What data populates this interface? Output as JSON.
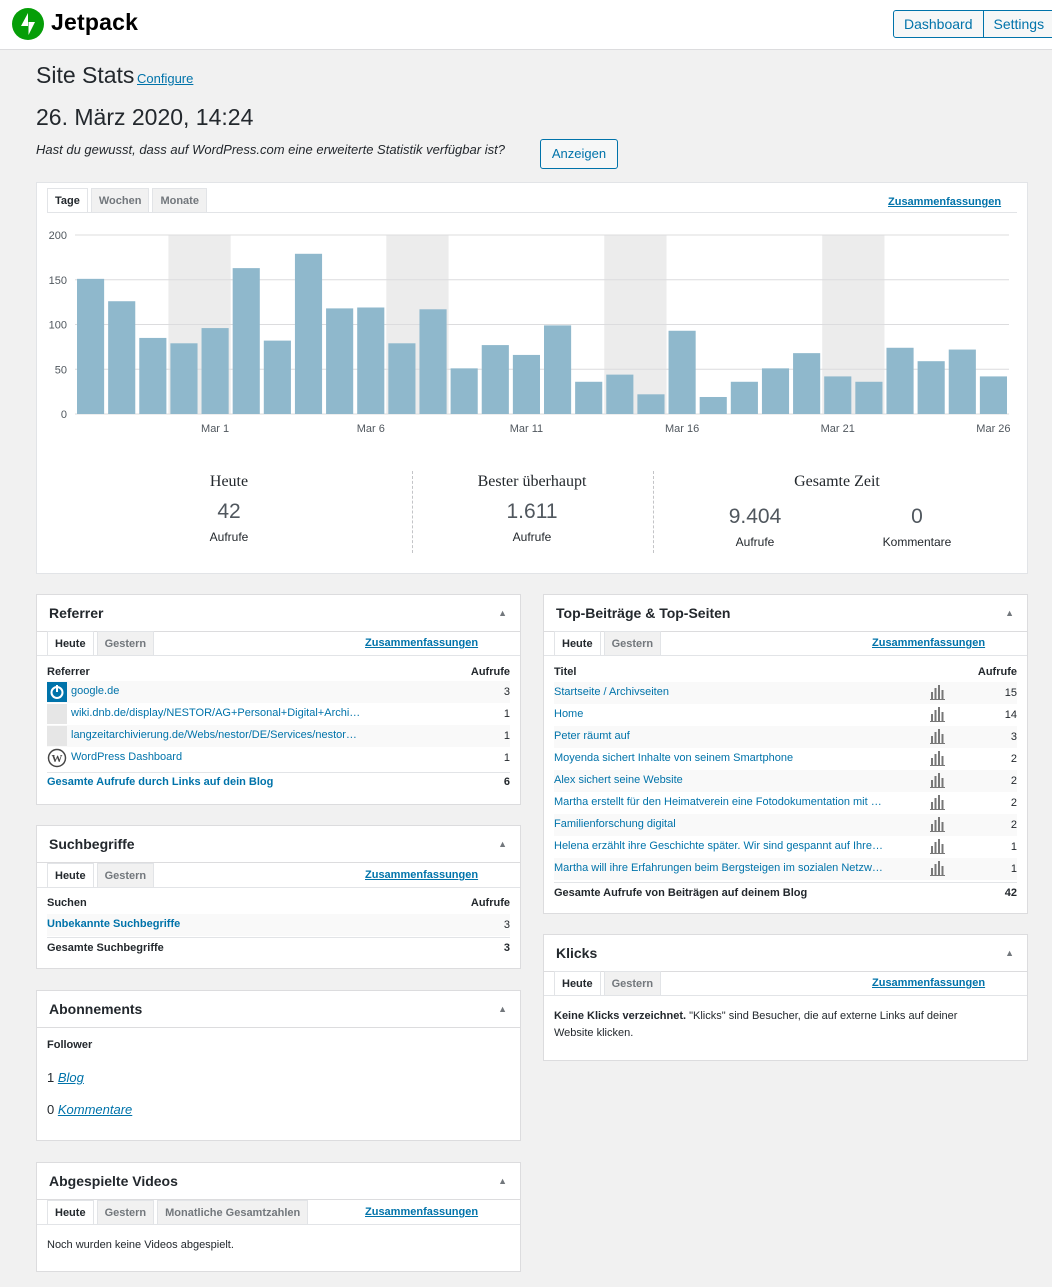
{
  "header": {
    "brand": "Jetpack",
    "buttons": [
      "Dashboard",
      "Settings"
    ],
    "accent": "#069e08"
  },
  "page": {
    "title": "Site Stats",
    "configure": "Configure",
    "date": "26. März 2020, 14:24",
    "hint": "Hast du gewusst, dass auf WordPress.com eine erweiterte Statistik verfügbar ist?",
    "hint_button": "Anzeigen"
  },
  "stats": {
    "tabs": [
      "Tage",
      "Wochen",
      "Monate"
    ],
    "summaries_link": "Zusammenfassungen",
    "today": {
      "title": "Heute",
      "value": "42",
      "label": "Aufrufe"
    },
    "best": {
      "title": "Bester überhaupt",
      "value": "1.611",
      "label": "Aufrufe"
    },
    "total": {
      "title": "Gesamte Zeit",
      "views": "9.404",
      "views_label": "Aufrufe",
      "comments": "0",
      "comments_label": "Kommentare"
    }
  },
  "chart_data": {
    "type": "bar",
    "categories": [
      "Feb 26",
      "Feb 27",
      "Feb 28",
      "Feb 29",
      "Mar 1",
      "Mar 2",
      "Mar 3",
      "Mar 4",
      "Mar 5",
      "Mar 6",
      "Mar 7",
      "Mar 8",
      "Mar 9",
      "Mar 10",
      "Mar 11",
      "Mar 12",
      "Mar 13",
      "Mar 14",
      "Mar 15",
      "Mar 16",
      "Mar 17",
      "Mar 18",
      "Mar 19",
      "Mar 20",
      "Mar 21",
      "Mar 22",
      "Mar 23",
      "Mar 24",
      "Mar 25",
      "Mar 26"
    ],
    "values": [
      151,
      126,
      85,
      79,
      96,
      163,
      82,
      179,
      118,
      119,
      79,
      117,
      51,
      77,
      66,
      99,
      36,
      44,
      22,
      93,
      19,
      36,
      51,
      68,
      42,
      36,
      74,
      59,
      72,
      42
    ],
    "weekend_bands": [
      [
        "Feb 29",
        "Mar 1"
      ],
      [
        "Mar 7",
        "Mar 8"
      ],
      [
        "Mar 14",
        "Mar 15"
      ],
      [
        "Mar 21",
        "Mar 22"
      ]
    ],
    "x_tick_labels": [
      "Mar 1",
      "Mar 6",
      "Mar 11",
      "Mar 16",
      "Mar 21",
      "Mar 26"
    ],
    "y_tick_labels": [
      "0",
      "50",
      "100",
      "150",
      "200"
    ],
    "ylim": [
      0,
      200
    ],
    "grid": true,
    "bar_color": "#8fb8cc",
    "band_color": "#ececec"
  },
  "referrer": {
    "title": "Referrer",
    "tabs": [
      "Heute",
      "Gestern"
    ],
    "summaries_link": "Zusammenfassungen",
    "col_left": "Referrer",
    "col_right": "Aufrufe",
    "rows": [
      {
        "label": "google.de",
        "value": "3",
        "icon": "power-icon"
      },
      {
        "label": "wiki.dnb.de/display/NESTOR/AG+Personal+Digital+Archi…",
        "value": "1",
        "icon": "blank"
      },
      {
        "label": "langzeitarchivierung.de/Webs/nestor/DE/Services/nestor…",
        "value": "1",
        "icon": "blank"
      },
      {
        "label": "WordPress Dashboard",
        "value": "1",
        "icon": "wordpress-icon"
      }
    ],
    "total_label": "Gesamte Aufrufe durch Links auf dein Blog",
    "total_value": "6"
  },
  "search": {
    "title": "Suchbegriffe",
    "tabs": [
      "Heute",
      "Gestern"
    ],
    "summaries_link": "Zusammenfassungen",
    "col_left": "Suchen",
    "col_right": "Aufrufe",
    "row_label": "Unbekannte Suchbegriffe",
    "row_value": "3",
    "total_label": "Gesamte Suchbegriffe",
    "total_value": "3"
  },
  "subs": {
    "title": "Abonnements",
    "follower": "Follower",
    "blog_count": "1",
    "blog_label": "Blog",
    "comments_count": "0",
    "comments_label": "Kommentare"
  },
  "videos": {
    "title": "Abgespielte Videos",
    "tabs": [
      "Heute",
      "Gestern",
      "Monatliche Gesamtzahlen"
    ],
    "summaries_link": "Zusammenfassungen",
    "empty": "Noch wurden keine Videos abgespielt."
  },
  "posts": {
    "title": "Top-Beiträge & Top-Seiten",
    "tabs": [
      "Heute",
      "Gestern"
    ],
    "summaries_link": "Zusammenfassungen",
    "col_left": "Titel",
    "col_right": "Aufrufe",
    "rows": [
      {
        "label": "Startseite / Archivseiten",
        "value": "15"
      },
      {
        "label": "Home",
        "value": "14"
      },
      {
        "label": "Peter räumt auf",
        "value": "3"
      },
      {
        "label": "Moyenda sichert Inhalte von seinem Smartphone",
        "value": "2"
      },
      {
        "label": "Alex sichert seine Website",
        "value": "2"
      },
      {
        "label": "Martha erstellt für den Heimatverein eine Fotodokumentation mit …",
        "value": "2"
      },
      {
        "label": "Familienforschung digital",
        "value": "2"
      },
      {
        "label": "Helena erzählt ihre Geschichte später. Wir sind gespannt auf Ihre…",
        "value": "1"
      },
      {
        "label": "Martha will ihre Erfahrungen beim Bergsteigen im sozialen Netzw…",
        "value": "1"
      }
    ],
    "total_label": "Gesamte Aufrufe von Beiträgen auf deinem Blog",
    "total_value": "42"
  },
  "clicks": {
    "title": "Klicks",
    "tabs": [
      "Heute",
      "Gestern"
    ],
    "summaries_link": "Zusammenfassungen",
    "empty_bold": "Keine Klicks verzeichnet.",
    "empty_line1": " \"Klicks\" sind Besucher, die auf externe Links auf deiner",
    "empty_line2": "Website klicken."
  }
}
